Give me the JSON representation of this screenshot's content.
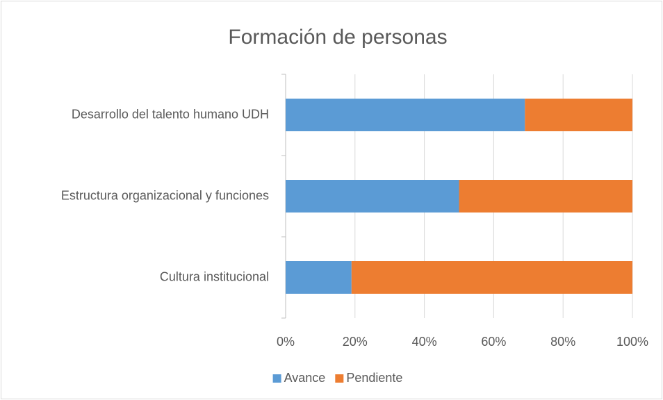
{
  "chart_data": {
    "type": "stacked_barh",
    "title": "Formación de personas",
    "categories": [
      "Desarrollo del talento humano UDH",
      "Estructura organizacional y funciones",
      "Cultura institucional"
    ],
    "series": [
      {
        "name": "Avance",
        "color": "#5b9bd5",
        "values": [
          69,
          50,
          19
        ]
      },
      {
        "name": "Pendiente",
        "color": "#ed7d31",
        "values": [
          31,
          50,
          81
        ]
      }
    ],
    "xlim": [
      0,
      100
    ],
    "xticks": [
      {
        "value": 0,
        "label": "0%"
      },
      {
        "value": 20,
        "label": "20%"
      },
      {
        "value": 40,
        "label": "40%"
      },
      {
        "value": 60,
        "label": "60%"
      },
      {
        "value": 80,
        "label": "80%"
      },
      {
        "value": 100,
        "label": "100%"
      }
    ],
    "grid": true,
    "legend": "bottom"
  }
}
